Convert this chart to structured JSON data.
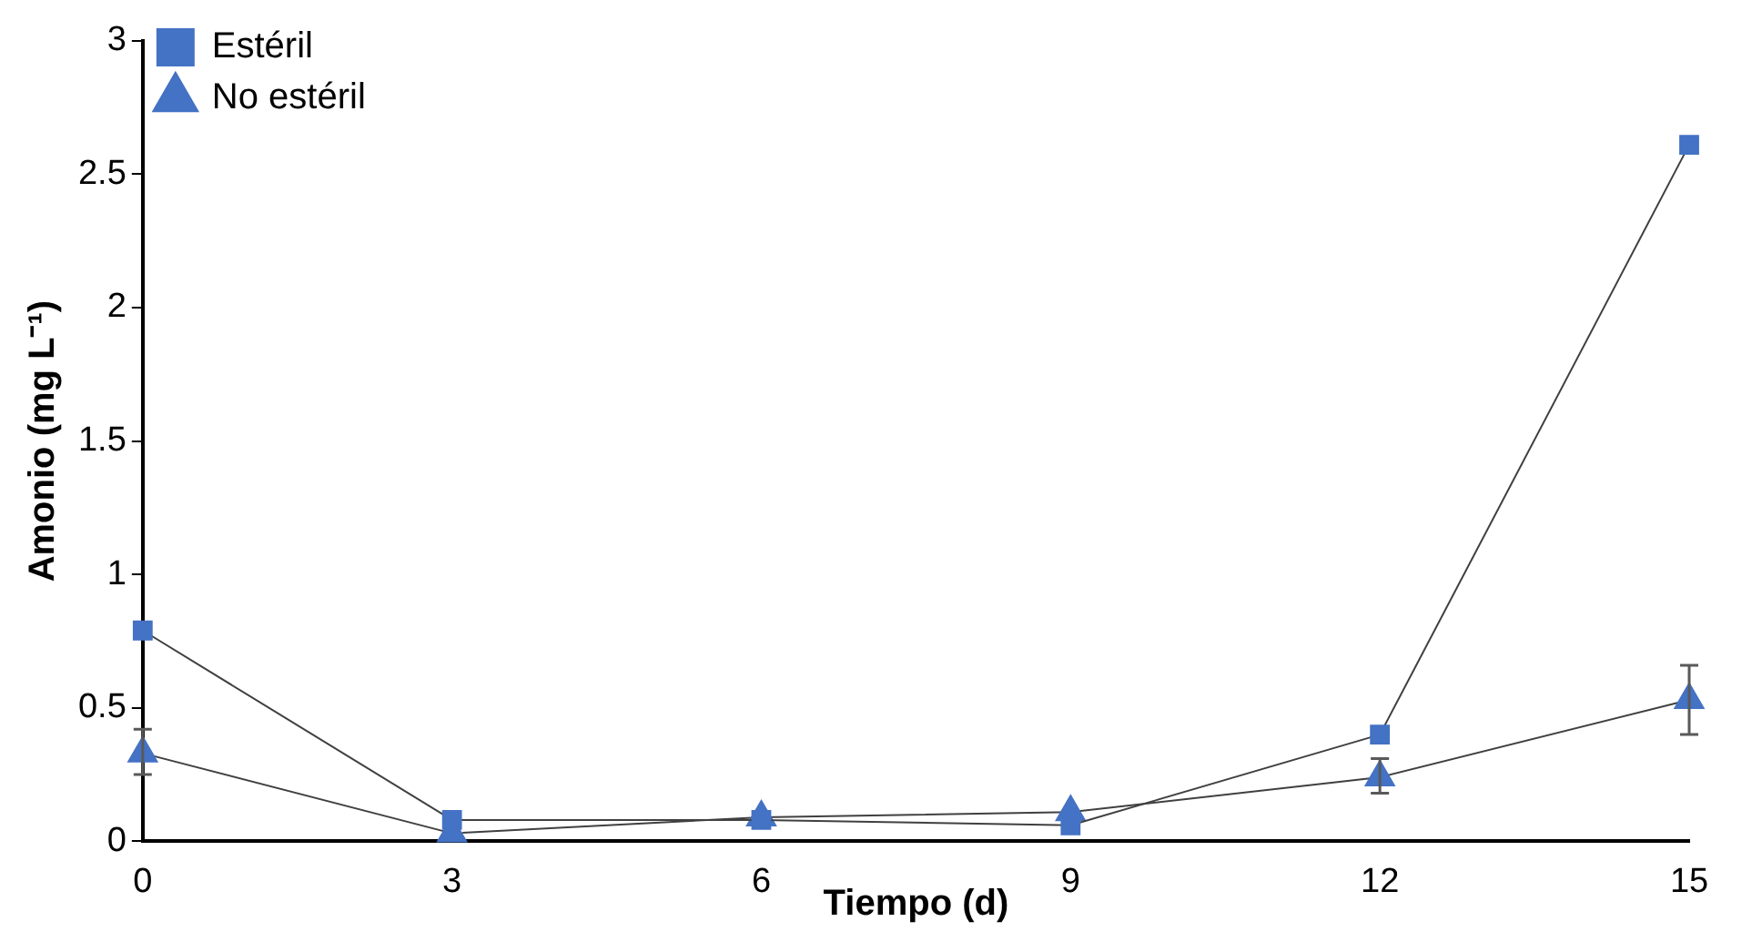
{
  "chart_data": {
    "type": "line",
    "xlabel": "Tiempo (d)",
    "ylabel": "Amonio (mg L⁻¹)",
    "x": [
      0,
      3,
      6,
      9,
      12,
      15
    ],
    "xlim": [
      0,
      15
    ],
    "xticks": [
      0,
      3,
      6,
      9,
      12,
      15
    ],
    "ylim": [
      0,
      3
    ],
    "yticks": [
      0,
      0.5,
      1,
      1.5,
      2,
      2.5,
      3
    ],
    "grid": false,
    "legend": "top left",
    "line_style": "solid",
    "series": [
      {
        "name": "Estéril",
        "color": "#4472c4",
        "marker": "square",
        "values": [
          0.79,
          0.08,
          0.08,
          0.06,
          0.4,
          2.61
        ]
      },
      {
        "name": "No estéril",
        "color": "#4472c4",
        "marker": "triangle",
        "values": [
          0.33,
          0.03,
          0.09,
          0.11,
          0.24,
          0.53
        ],
        "errors": [
          [
            0.25,
            0.42
          ],
          null,
          null,
          null,
          [
            0.18,
            0.31
          ],
          [
            0.4,
            0.66
          ]
        ]
      }
    ]
  }
}
